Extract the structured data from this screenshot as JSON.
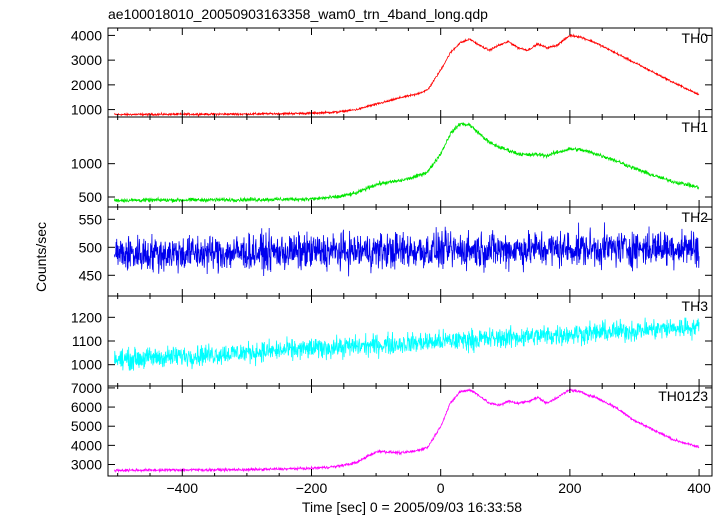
{
  "chart_data": {
    "type": "line",
    "title": "ae100018010_20050903163358_wam0_trn_4band_long.qdp",
    "xlabel": "Time [sec] 0 = 2005/09/03 16:33:58",
    "ylabel": "Counts/sec",
    "xlim": [
      -515,
      420
    ],
    "x_ticks": [
      -400,
      -200,
      0,
      200,
      400
    ],
    "x_tick_labels": [
      "−400",
      "−200",
      "0",
      "200",
      "400"
    ],
    "grid": false,
    "panels": [
      {
        "name": "TH0",
        "color": "#ff0000",
        "ylim": [
          700,
          4300
        ],
        "ticks": [
          1000,
          2000,
          3000,
          4000
        ],
        "tick_labels": [
          "1000",
          "2000",
          "3000",
          "4000"
        ],
        "profile_x": [
          -505,
          -300,
          -200,
          -160,
          -130,
          -110,
          -95,
          -80,
          -60,
          -40,
          -20,
          0,
          15,
          30,
          45,
          60,
          75,
          90,
          105,
          120,
          135,
          150,
          165,
          180,
          200,
          215,
          240,
          270,
          300,
          330,
          360,
          380,
          400
        ],
        "profile_y": [
          800,
          820,
          850,
          900,
          1000,
          1150,
          1250,
          1350,
          1500,
          1600,
          1800,
          2600,
          3300,
          3700,
          3850,
          3600,
          3400,
          3600,
          3750,
          3500,
          3400,
          3650,
          3500,
          3600,
          4000,
          3950,
          3700,
          3300,
          2900,
          2500,
          2100,
          1850,
          1600
        ],
        "noise": 35
      },
      {
        "name": "TH1",
        "color": "#00e600",
        "ylim": [
          350,
          1700
        ],
        "ticks": [
          500,
          1000
        ],
        "tick_labels": [
          "500",
          "1000"
        ],
        "profile_x": [
          -505,
          -300,
          -200,
          -160,
          -130,
          -110,
          -95,
          -80,
          -60,
          -40,
          -20,
          0,
          15,
          30,
          45,
          60,
          75,
          90,
          105,
          120,
          135,
          150,
          165,
          180,
          200,
          215,
          240,
          270,
          300,
          330,
          360,
          380,
          400
        ],
        "profile_y": [
          450,
          460,
          470,
          500,
          560,
          650,
          700,
          720,
          750,
          800,
          880,
          1150,
          1450,
          1600,
          1580,
          1450,
          1320,
          1250,
          1200,
          1150,
          1130,
          1140,
          1120,
          1170,
          1220,
          1210,
          1150,
          1050,
          930,
          820,
          730,
          690,
          640
        ],
        "noise": 25
      },
      {
        "name": "TH2",
        "color": "#0000ee",
        "ylim": [
          413,
          572
        ],
        "ticks": [
          450,
          500,
          550
        ],
        "tick_labels": [
          "450",
          "500",
          "550"
        ],
        "profile_x": [
          -505,
          400
        ],
        "profile_y": [
          488,
          500
        ],
        "noise": 28
      },
      {
        "name": "TH3",
        "color": "#00ffff",
        "ylim": [
          910,
          1290
        ],
        "ticks": [
          1000,
          1100,
          1200
        ],
        "tick_labels": [
          "1000",
          "1100",
          "1200"
        ],
        "profile_x": [
          -505,
          400
        ],
        "profile_y": [
          1020,
          1160
        ],
        "noise": 38
      },
      {
        "name": "TH0123",
        "color": "#ff00ff",
        "ylim": [
          2400,
          7100
        ],
        "ticks": [
          3000,
          4000,
          5000,
          6000,
          7000
        ],
        "tick_labels": [
          "3000",
          "4000",
          "5000",
          "6000",
          "7000"
        ],
        "profile_x": [
          -505,
          -300,
          -200,
          -160,
          -130,
          -110,
          -95,
          -80,
          -60,
          -40,
          -20,
          0,
          15,
          30,
          45,
          60,
          75,
          90,
          105,
          120,
          135,
          150,
          165,
          180,
          200,
          215,
          240,
          270,
          300,
          330,
          360,
          380,
          400
        ],
        "profile_y": [
          2700,
          2730,
          2800,
          2900,
          3100,
          3500,
          3700,
          3650,
          3600,
          3700,
          3900,
          5000,
          6200,
          6800,
          6900,
          6600,
          6200,
          6100,
          6300,
          6200,
          6300,
          6500,
          6200,
          6500,
          6900,
          6800,
          6500,
          6000,
          5300,
          4800,
          4300,
          4100,
          3900
        ],
        "noise": 60
      }
    ]
  }
}
